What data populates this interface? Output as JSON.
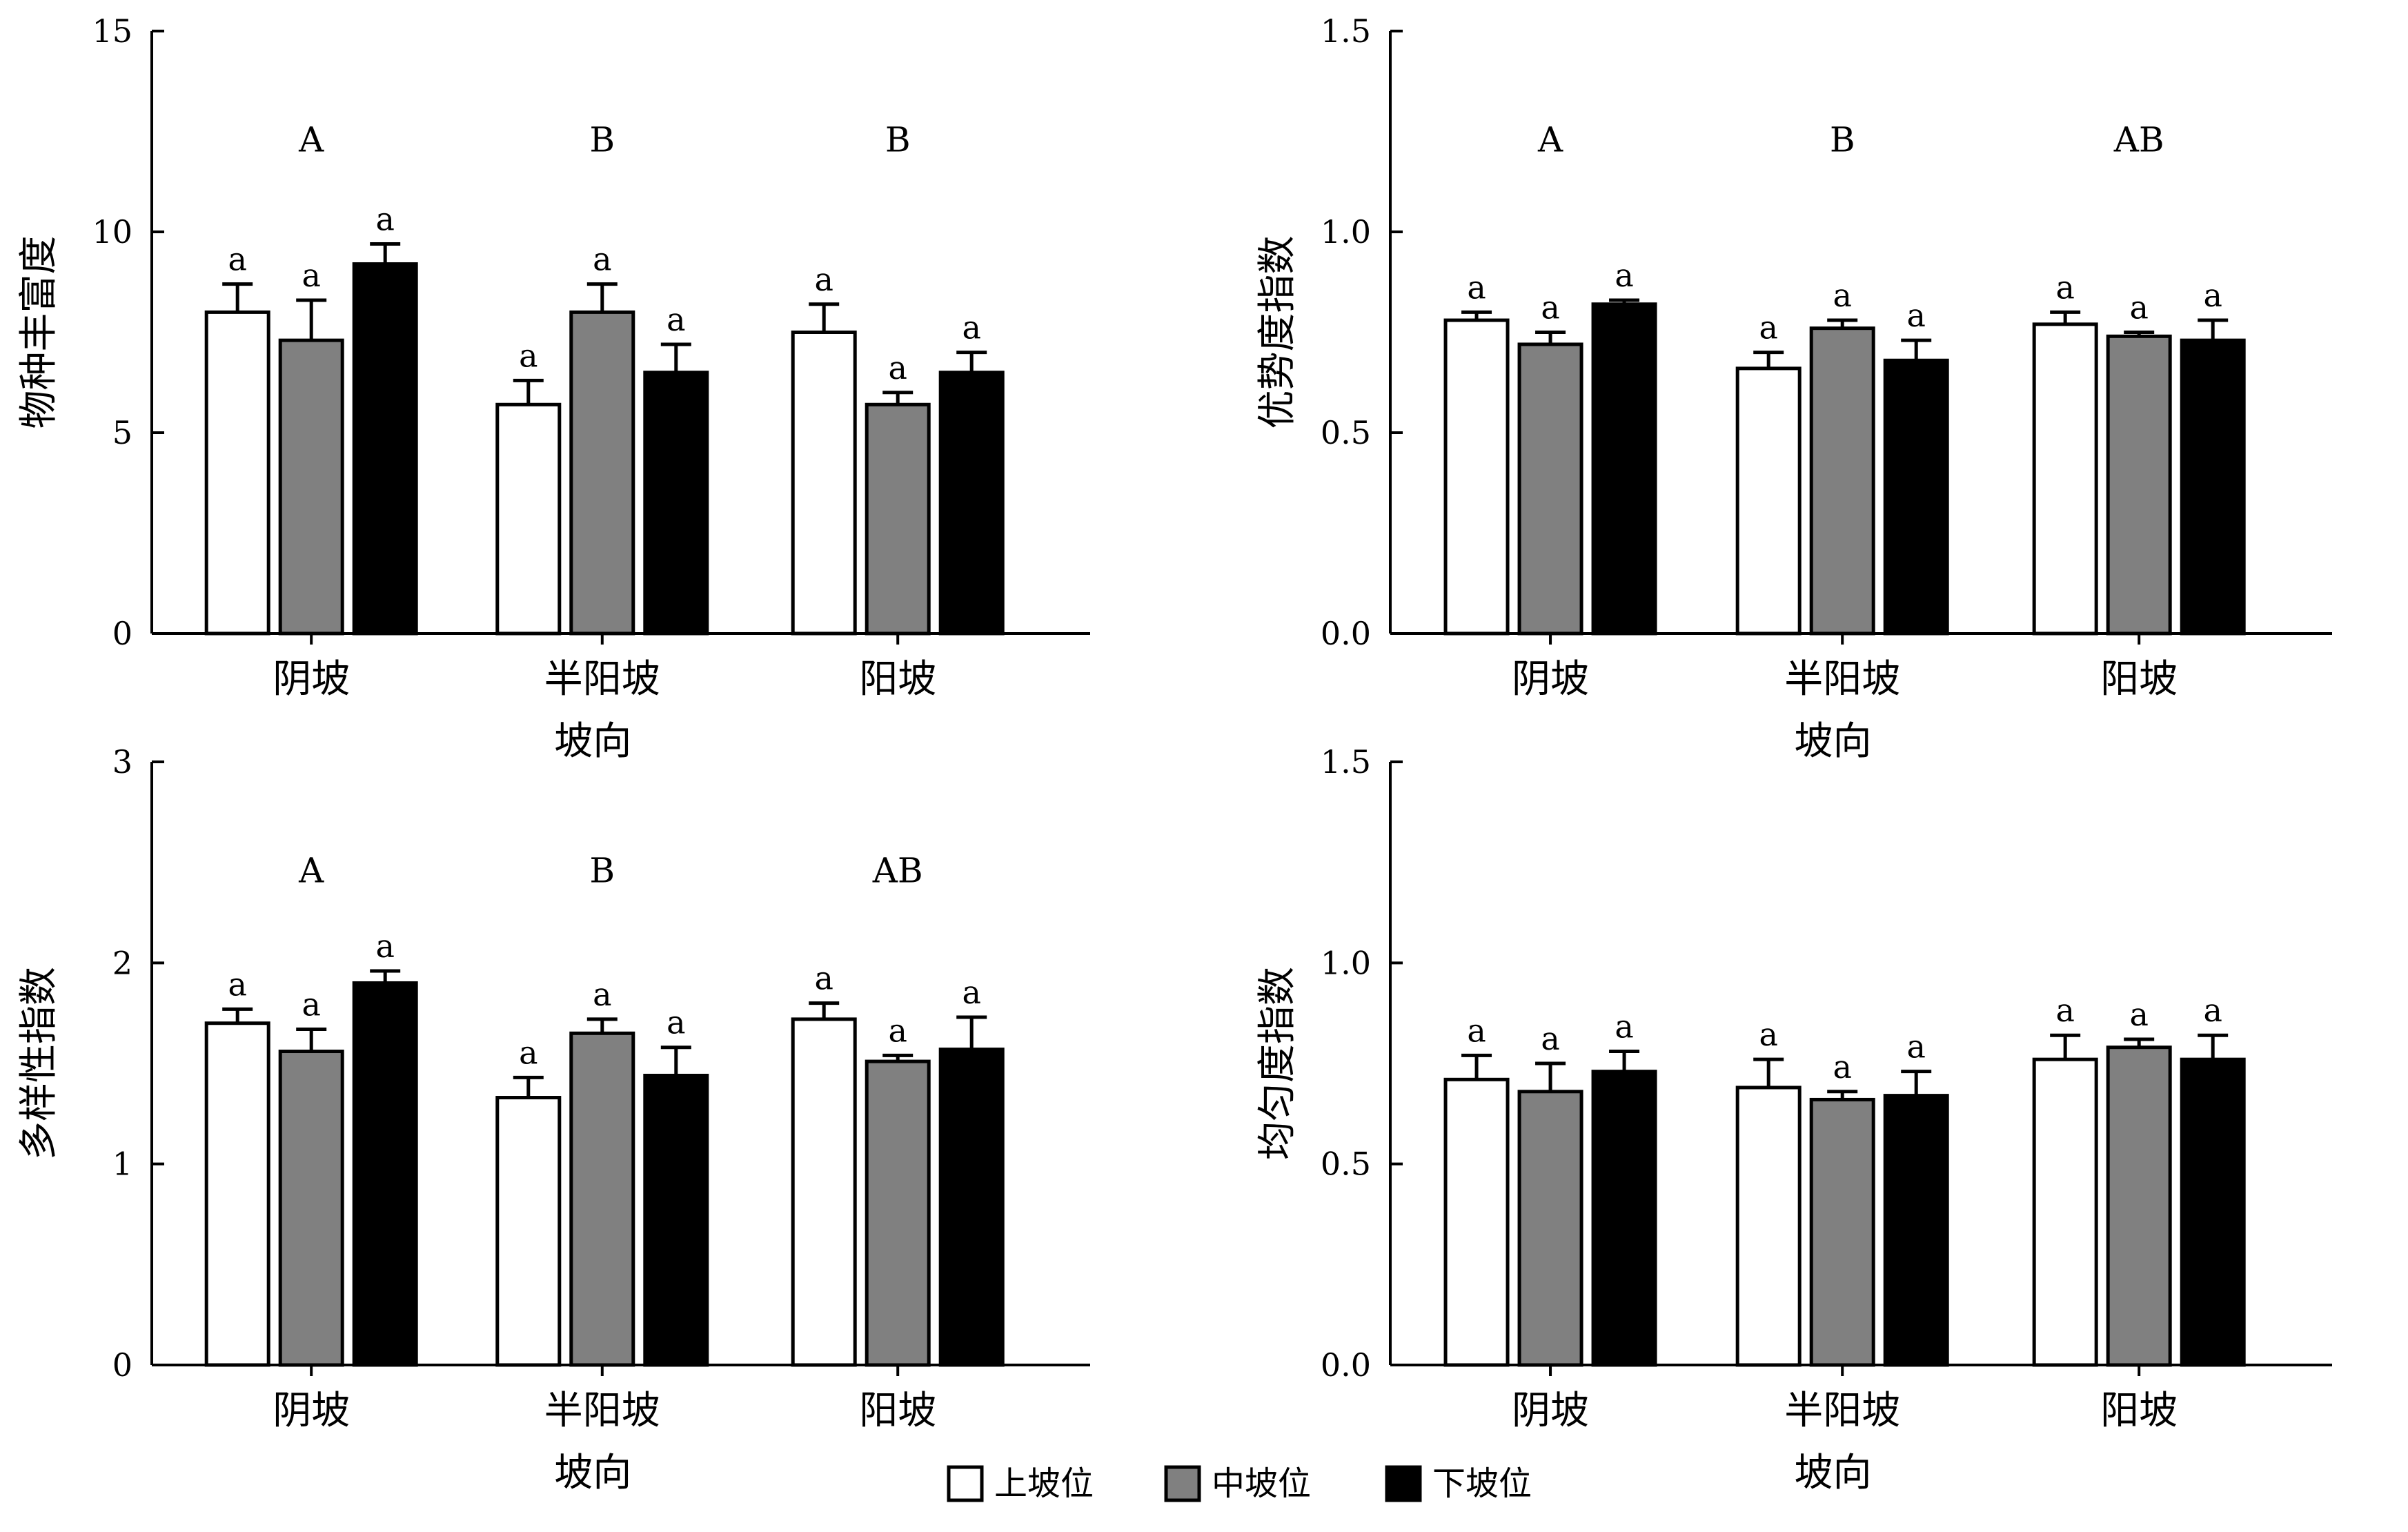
{
  "series_styles": [
    {
      "name": "上坡位",
      "fill": "#ffffff"
    },
    {
      "name": "中坡位",
      "fill": "#808080"
    },
    {
      "name": "下坡位",
      "fill": "#000000"
    }
  ],
  "chart_data": [
    {
      "type": "bar",
      "xlabel": "坡向",
      "ylabel": "物种丰富度",
      "ylim": [
        0,
        15
      ],
      "yticks": [
        "0",
        "5",
        "10",
        "15"
      ],
      "categories": [
        "阴坡",
        "半阳坡",
        "阳坡"
      ],
      "group_letters": [
        "A",
        "B",
        "B"
      ],
      "series": [
        {
          "name": "上坡位",
          "values": [
            8.0,
            5.7,
            7.5
          ],
          "errors": [
            0.7,
            0.6,
            0.7
          ],
          "letters": [
            "a",
            "a",
            "a"
          ]
        },
        {
          "name": "中坡位",
          "values": [
            7.3,
            8.0,
            5.7
          ],
          "errors": [
            1.0,
            0.7,
            0.3
          ],
          "letters": [
            "a",
            "a",
            "a"
          ]
        },
        {
          "name": "下坡位",
          "values": [
            9.2,
            6.5,
            6.5
          ],
          "errors": [
            0.5,
            0.7,
            0.5
          ],
          "letters": [
            "a",
            "a",
            "a"
          ]
        }
      ]
    },
    {
      "type": "bar",
      "xlabel": "坡向",
      "ylabel": "优势度指数",
      "ylim": [
        0,
        1.5
      ],
      "yticks": [
        "0.0",
        "0.5",
        "1.0",
        "1.5"
      ],
      "categories": [
        "阴坡",
        "半阳坡",
        "阳坡"
      ],
      "group_letters": [
        "A",
        "B",
        "AB"
      ],
      "series": [
        {
          "name": "上坡位",
          "values": [
            0.78,
            0.66,
            0.77
          ],
          "errors": [
            0.02,
            0.04,
            0.03
          ],
          "letters": [
            "a",
            "a",
            "a"
          ]
        },
        {
          "name": "中坡位",
          "values": [
            0.72,
            0.76,
            0.74
          ],
          "errors": [
            0.03,
            0.02,
            0.01
          ],
          "letters": [
            "a",
            "a",
            "a"
          ]
        },
        {
          "name": "下坡位",
          "values": [
            0.82,
            0.68,
            0.73
          ],
          "errors": [
            0.01,
            0.05,
            0.05
          ],
          "letters": [
            "a",
            "a",
            "a"
          ]
        }
      ]
    },
    {
      "type": "bar",
      "xlabel": "坡向",
      "ylabel": "多样性指数",
      "ylim": [
        0,
        3
      ],
      "yticks": [
        "0",
        "1",
        "2",
        "3"
      ],
      "categories": [
        "阴坡",
        "半阳坡",
        "阳坡"
      ],
      "group_letters": [
        "A",
        "B",
        "AB"
      ],
      "series": [
        {
          "name": "上坡位",
          "values": [
            1.7,
            1.33,
            1.72
          ],
          "errors": [
            0.07,
            0.1,
            0.08
          ],
          "letters": [
            "a",
            "a",
            "a"
          ]
        },
        {
          "name": "中坡位",
          "values": [
            1.56,
            1.65,
            1.51
          ],
          "errors": [
            0.11,
            0.07,
            0.03
          ],
          "letters": [
            "a",
            "a",
            "a"
          ]
        },
        {
          "name": "下坡位",
          "values": [
            1.9,
            1.44,
            1.57
          ],
          "errors": [
            0.06,
            0.14,
            0.16
          ],
          "letters": [
            "a",
            "a",
            "a"
          ]
        }
      ]
    },
    {
      "type": "bar",
      "xlabel": "坡向",
      "ylabel": "均匀度指数",
      "ylim": [
        0,
        1.5
      ],
      "yticks": [
        "0.0",
        "0.5",
        "1.0",
        "1.5"
      ],
      "categories": [
        "阴坡",
        "半阳坡",
        "阳坡"
      ],
      "group_letters": [
        "",
        "",
        ""
      ],
      "series": [
        {
          "name": "上坡位",
          "values": [
            0.71,
            0.69,
            0.76
          ],
          "errors": [
            0.06,
            0.07,
            0.06
          ],
          "letters": [
            "a",
            "a",
            "a"
          ]
        },
        {
          "name": "中坡位",
          "values": [
            0.68,
            0.66,
            0.79
          ],
          "errors": [
            0.07,
            0.02,
            0.02
          ],
          "letters": [
            "a",
            "a",
            "a"
          ]
        },
        {
          "name": "下坡位",
          "values": [
            0.73,
            0.67,
            0.76
          ],
          "errors": [
            0.05,
            0.06,
            0.06
          ],
          "letters": [
            "a",
            "a",
            "a"
          ]
        }
      ]
    }
  ]
}
